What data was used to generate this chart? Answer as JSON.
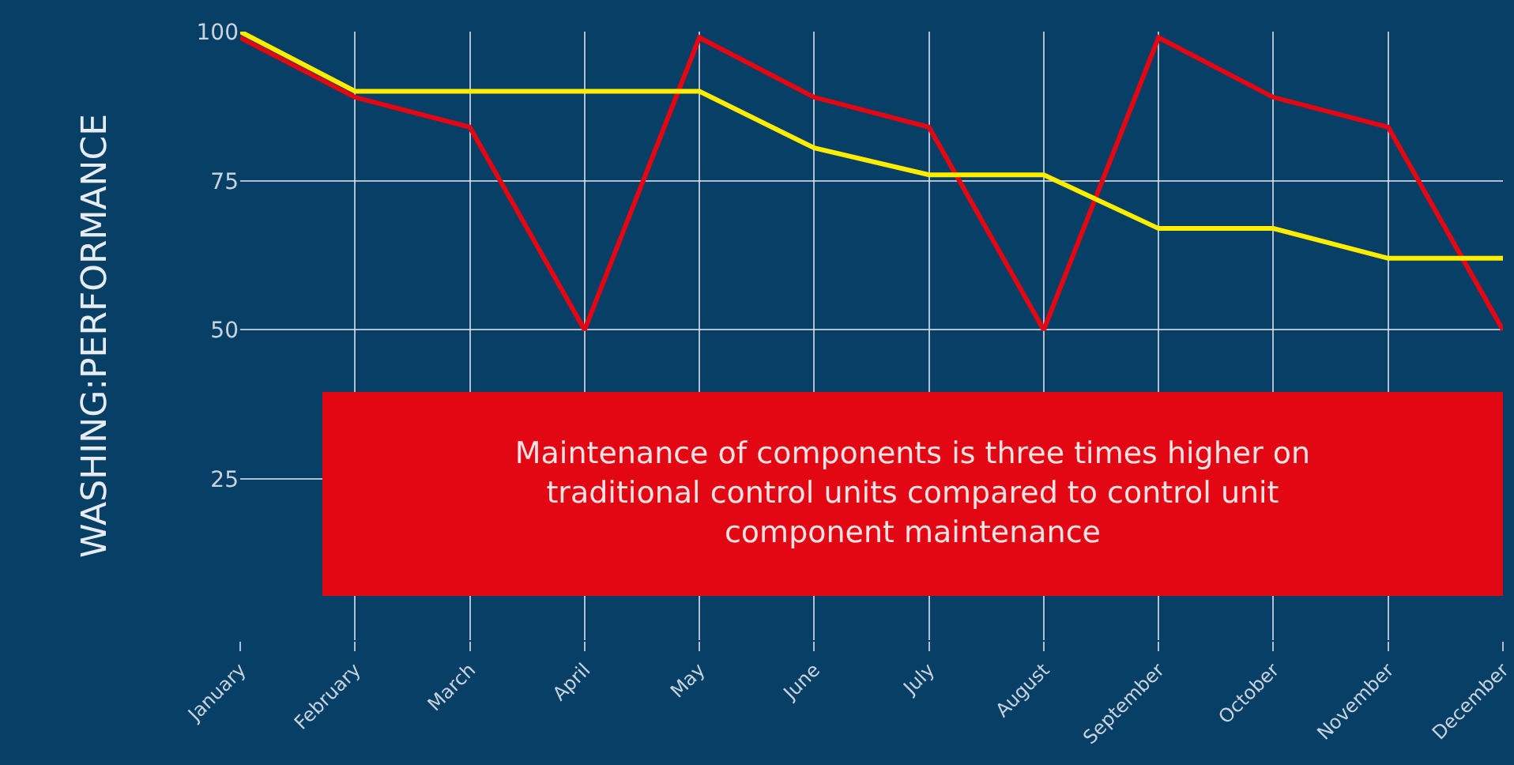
{
  "chart_data": {
    "type": "line",
    "ylabel": "WASHING:PERFORMANCE",
    "categories": [
      "January",
      "February",
      "March",
      "April",
      "May",
      "June",
      "July",
      "August",
      "September",
      "October",
      "November",
      "December"
    ],
    "series": [
      {
        "color": "#e30613",
        "values": [
          99,
          89,
          84,
          50,
          99,
          89,
          84,
          50,
          99,
          89,
          84,
          50
        ]
      },
      {
        "color": "#ffed00",
        "values": [
          100,
          90,
          90,
          90,
          90,
          80.5,
          76,
          76,
          67,
          67,
          62,
          62
        ]
      }
    ],
    "ylim": [
      -2,
      100
    ],
    "yticks": [
      25,
      50,
      75,
      100
    ],
    "grid": true,
    "legend": false,
    "marker": "none",
    "line_style": "solid",
    "annotations": [
      "Maintenance of components is three times higher on traditional control units compared to control unit component maintenance"
    ]
  }
}
